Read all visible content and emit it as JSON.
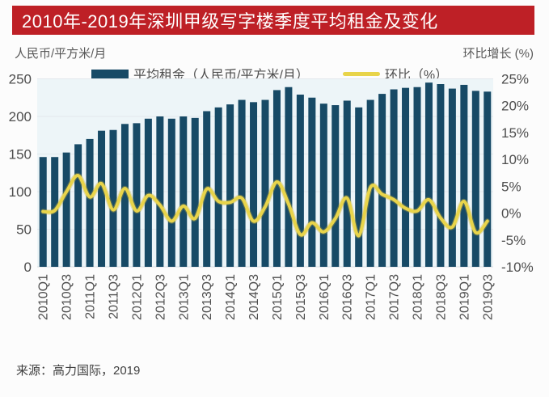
{
  "title_bar": {
    "text": "2010年-2019年深圳甲级写字楼季度平均租金及变化",
    "bg_color": "#be2026",
    "text_color": "#ffffff"
  },
  "axis_units": {
    "left": "人民币/平方米/月",
    "right": "环比增长 (%)"
  },
  "legend": [
    {
      "label": "平均租金（人民币/平方米/月）",
      "swatch": "bar-swatch",
      "color": "#174a66"
    },
    {
      "label": "环比（%）",
      "swatch": "line-swatch",
      "color": "#e8d44a"
    }
  ],
  "source": "来源：高力国际，2019",
  "colors": {
    "bar": "#174a66",
    "line": "#e8d44a",
    "line_shadow": "#c9b23e",
    "plot_bg": "#edf5f8",
    "grid": "#e2e8ec",
    "axis_text": "#4d4d4d",
    "baseline": "#d8dde0"
  },
  "chart_data": {
    "type": "bar",
    "title": "2010年-2019年深圳甲级写字楼季度平均租金及变化",
    "xlabel": "",
    "ylabel_left": "人民币/平方米/月",
    "ylabel_right": "环比增长 (%)",
    "grid": true,
    "legend_position": "top",
    "x_tick_step": 2,
    "categories": [
      "2010Q1",
      "2010Q2",
      "2010Q3",
      "2010Q4",
      "2011Q1",
      "2011Q2",
      "2011Q3",
      "2011Q4",
      "2012Q1",
      "2012Q2",
      "2012Q3",
      "2012Q4",
      "2013Q1",
      "2013Q2",
      "2013Q3",
      "2013Q4",
      "2014Q1",
      "2014Q2",
      "2014Q3",
      "2014Q4",
      "2015Q1",
      "2015Q2",
      "2015Q3",
      "2015Q4",
      "2016Q1",
      "2016Q2",
      "2016Q3",
      "2016Q4",
      "2017Q1",
      "2017Q2",
      "2017Q3",
      "2017Q4",
      "2018Q1",
      "2018Q2",
      "2018Q3",
      "2018Q4",
      "2019Q1",
      "2019Q2",
      "2019Q3"
    ],
    "series": [
      {
        "name": "平均租金（人民币/平方米/月）",
        "type": "bar",
        "axis": "left",
        "color": "#174a66",
        "values": [
          146,
          146,
          152,
          163,
          170,
          181,
          182,
          190,
          191,
          197,
          200,
          197,
          200,
          198,
          207,
          212,
          216,
          222,
          219,
          222,
          235,
          239,
          229,
          225,
          217,
          215,
          221,
          212,
          222,
          230,
          236,
          238,
          239,
          245,
          243,
          237,
          242,
          234,
          233
        ]
      },
      {
        "name": "环比（%）",
        "type": "line",
        "axis": "right",
        "color": "#e8d44a",
        "values": [
          0.3,
          0.5,
          4.0,
          7.0,
          3.0,
          5.5,
          0.6,
          4.6,
          0.4,
          3.3,
          1.5,
          -1.5,
          1.3,
          -1.0,
          4.5,
          2.2,
          2.0,
          2.8,
          -1.5,
          1.2,
          5.8,
          1.7,
          -4.0,
          -1.8,
          -3.5,
          -1.0,
          2.8,
          -4.2,
          4.8,
          3.5,
          2.5,
          0.9,
          0.4,
          2.5,
          -0.9,
          -2.6,
          2.2,
          -3.6,
          -1.5
        ]
      }
    ],
    "left_axis": {
      "range": [
        0,
        250
      ],
      "ticks": [
        0,
        50,
        100,
        150,
        200,
        250
      ]
    },
    "right_axis": {
      "range": [
        -10,
        25
      ],
      "tick_values": [
        -10,
        -5,
        0,
        5,
        10,
        15,
        20,
        25
      ],
      "ticks": [
        "-10%",
        "-5%",
        "0%",
        "5%",
        "10%",
        "15%",
        "20%",
        "25%"
      ]
    }
  }
}
